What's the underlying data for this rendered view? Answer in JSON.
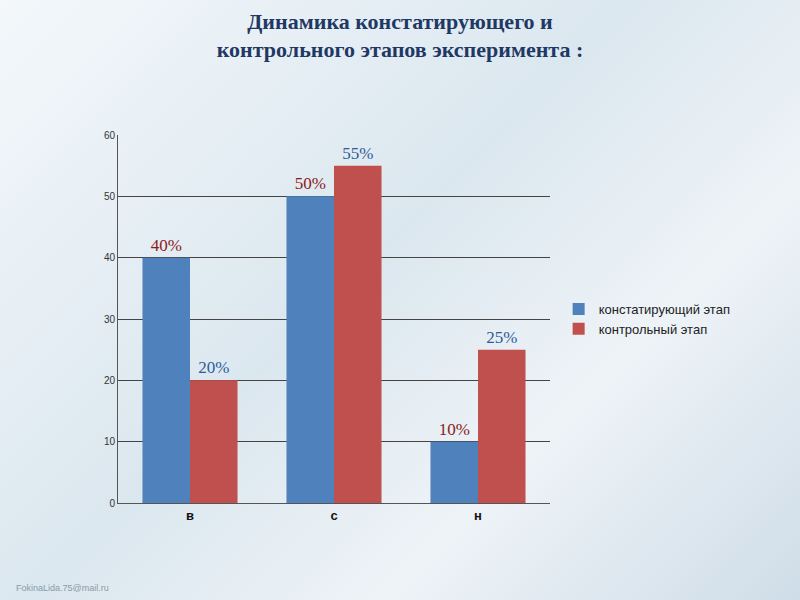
{
  "chart_data": {
    "type": "bar",
    "title": "Динамика констатирующего и контрольного этапов эксперимента :",
    "categories": [
      "в",
      "с",
      "н"
    ],
    "series": [
      {
        "name": "констатирующий этап",
        "color": "#4f81bd",
        "values": [
          40,
          50,
          10
        ],
        "value_labels": [
          "40%",
          "50%",
          "10%"
        ]
      },
      {
        "name": "контрольный этап",
        "color": "#c0504d",
        "values": [
          20,
          55,
          25
        ],
        "value_labels": [
          "20%",
          "55%",
          "25%"
        ]
      }
    ],
    "ylim": [
      0,
      60
    ],
    "yticks": [
      0,
      10,
      20,
      30,
      40,
      50,
      60
    ],
    "grid": true,
    "legend": "right",
    "data_labels": true,
    "footer": "FokinaLida.75@mail.ru"
  }
}
